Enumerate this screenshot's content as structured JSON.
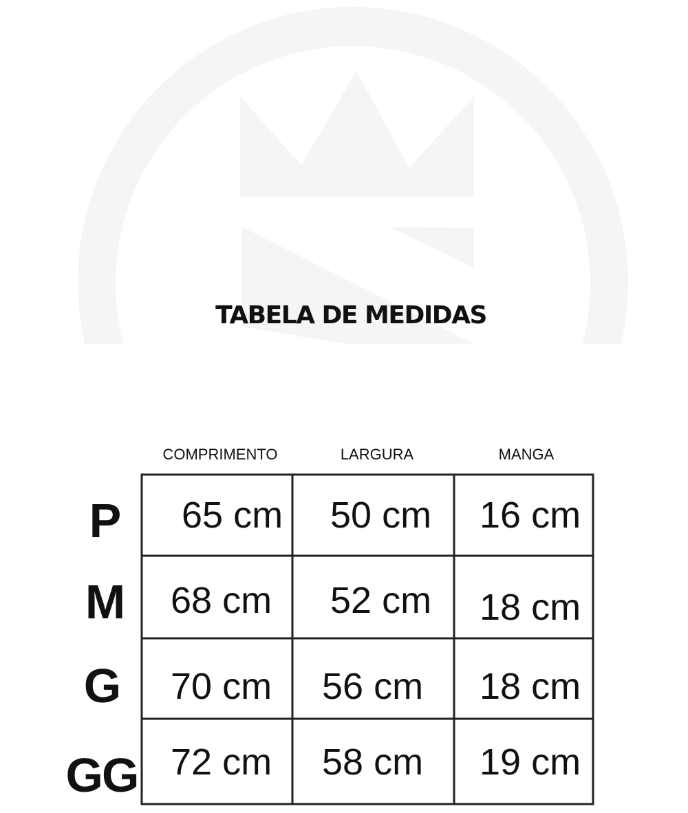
{
  "title": "TABELA DE MEDIDAS",
  "watermark": {
    "type": "crown-logo-in-circle",
    "color": "#f5f5f5"
  },
  "table": {
    "columns": [
      "COMPRIMENTO",
      "LARGURA",
      "MANGA"
    ],
    "rows": [
      {
        "size": "P",
        "values": [
          "65 cm",
          "50 cm",
          "16 cm"
        ]
      },
      {
        "size": "M",
        "values": [
          "68 cm",
          "52 cm",
          "18 cm"
        ]
      },
      {
        "size": "G",
        "values": [
          "70 cm",
          "56 cm",
          "18 cm"
        ]
      },
      {
        "size": "GG",
        "values": [
          "72 cm",
          "58 cm",
          "19 cm"
        ]
      }
    ]
  }
}
